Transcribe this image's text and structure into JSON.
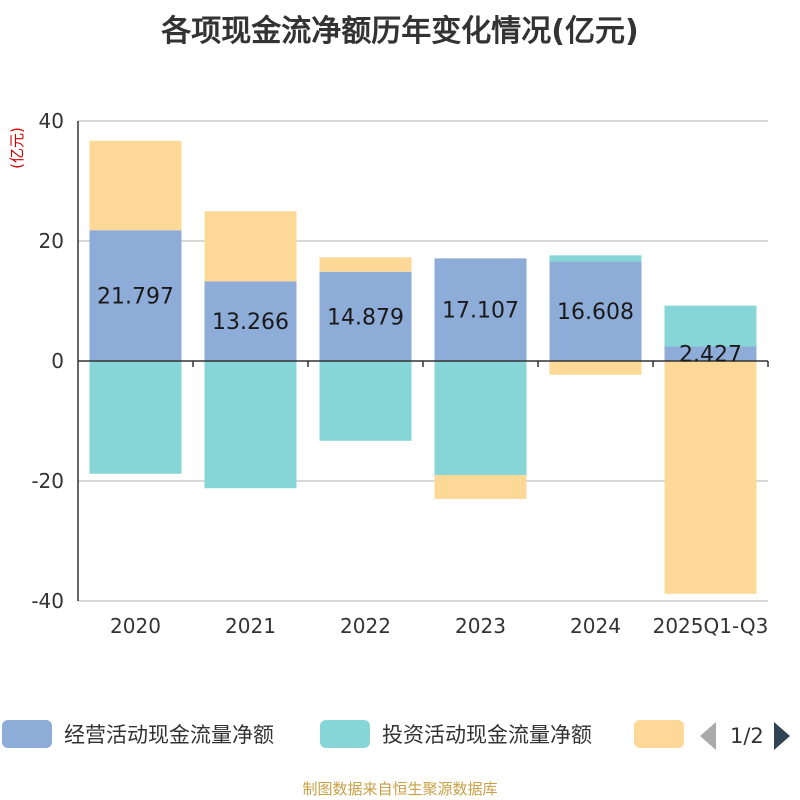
{
  "chart_data": {
    "type": "bar",
    "stacked": true,
    "title": "各项现金流净额历年变化情况(亿元)",
    "ylabel": "(亿元)",
    "xlabel": "",
    "ylim": [
      -40,
      40
    ],
    "yticks": [
      40,
      20,
      0,
      -20,
      -40
    ],
    "categories": [
      "2020",
      "2021",
      "2022",
      "2023",
      "2024",
      "2025Q1-Q3"
    ],
    "series": [
      {
        "name": "经营活动现金流量净额",
        "color": "#8eacd8",
        "values": [
          21.797,
          13.266,
          14.879,
          17.107,
          16.608,
          2.427
        ],
        "labels": [
          "21.797",
          "13.266",
          "14.879",
          "17.107",
          "16.608",
          "2.427"
        ]
      },
      {
        "name": "投资活动现金流量净额",
        "color": "#86d6d8",
        "values": [
          -18.8,
          -21.2,
          -13.3,
          -19.0,
          1.0,
          6.8
        ]
      },
      {
        "name": "",
        "color": "#fdd897",
        "values": [
          14.9,
          11.7,
          2.4,
          -4.0,
          -2.3,
          -38.8
        ]
      }
    ],
    "grid": true
  },
  "legend": {
    "items": [
      {
        "label": "经营活动现金流量净额",
        "color": "#8eacd8"
      },
      {
        "label": "投资活动现金流量净额",
        "color": "#86d6d8"
      },
      {
        "label": "",
        "color": "#fdd897"
      }
    ],
    "page": "1/2"
  },
  "source": "制图数据来自恒生聚源数据库"
}
